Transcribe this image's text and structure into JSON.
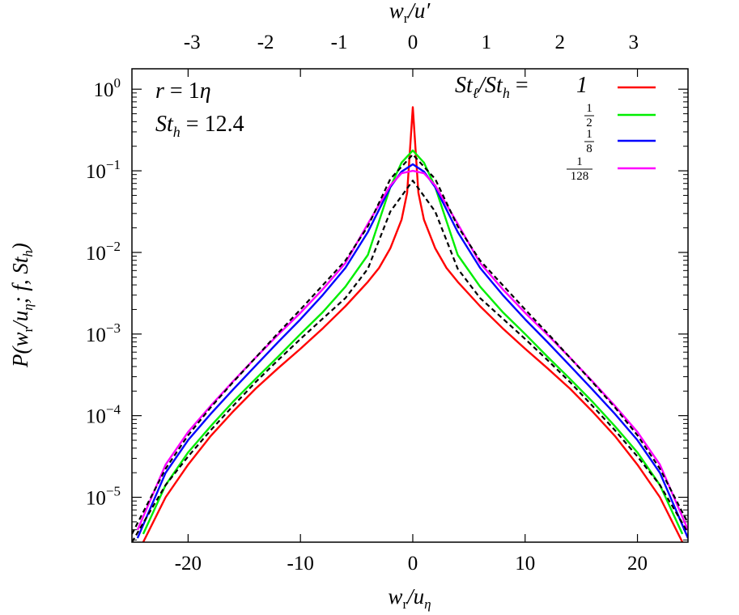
{
  "chart_data": {
    "type": "line",
    "xlabel_bottom": "wr/uη",
    "xlabel_top": "wr/u′",
    "ylabel": "P(wr/uη; f, Sth)",
    "x_ticks": [
      "-20",
      "-10",
      "0",
      "10",
      "20"
    ],
    "x_top_ticks": [
      "-3",
      "-2",
      "-1",
      "0",
      "1",
      "2",
      "3"
    ],
    "y_ticks": [
      "10^0",
      "10^-1",
      "10^-2",
      "10^-3",
      "10^-4",
      "10^-5"
    ],
    "xlim": [
      -25,
      24.5
    ],
    "ylim_log10": [
      -5.55,
      0.25
    ],
    "y_scale": "log",
    "annotations": [
      "r = 1η",
      "Sth = 12.4"
    ],
    "legend_title": "Stℓ/Sth",
    "legend_position": "top-right",
    "series": [
      {
        "name": "1",
        "color": "#ff0000",
        "dash": "solid",
        "x": [
          -24.0,
          -22.0,
          -20.0,
          -18.0,
          -16.0,
          -14.0,
          -12.0,
          -10.0,
          -8.0,
          -6.0,
          -4.0,
          -3.0,
          -2.0,
          -1.0,
          -0.5,
          0.0,
          0.5,
          1.0,
          2.0,
          3.0,
          4.0,
          6.0,
          8.0,
          10.0,
          12.0,
          14.0,
          16.0,
          18.0,
          20.0,
          22.0,
          24.0
        ],
        "log10_y": [
          -5.55,
          -5.0,
          -4.6,
          -4.25,
          -3.95,
          -3.67,
          -3.42,
          -3.18,
          -2.93,
          -2.66,
          -2.36,
          -2.19,
          -1.95,
          -1.6,
          -1.27,
          -0.22,
          -1.27,
          -1.6,
          -1.95,
          -2.19,
          -2.36,
          -2.66,
          -2.93,
          -3.18,
          -3.42,
          -3.67,
          -3.95,
          -4.25,
          -4.6,
          -5.0,
          -5.55
        ]
      },
      {
        "name": "1/2",
        "color": "#00ee00",
        "dash": "solid",
        "x": [
          -24.0,
          -22.0,
          -20.0,
          -18.0,
          -16.0,
          -14.0,
          -12.0,
          -10.0,
          -8.0,
          -6.0,
          -4.0,
          -2.0,
          -1.0,
          0.0,
          1.0,
          2.0,
          4.0,
          6.0,
          8.0,
          10.0,
          12.0,
          14.0,
          16.0,
          18.0,
          20.0,
          22.0,
          24.0
        ],
        "log10_y": [
          -5.45,
          -4.85,
          -4.45,
          -4.13,
          -3.83,
          -3.55,
          -3.28,
          -3.0,
          -2.73,
          -2.42,
          -2.03,
          -1.2,
          -0.9,
          -0.75,
          -0.9,
          -1.2,
          -2.03,
          -2.42,
          -2.73,
          -3.0,
          -3.28,
          -3.55,
          -3.83,
          -4.13,
          -4.45,
          -4.85,
          -5.45
        ]
      },
      {
        "name": "1/8",
        "color": "#0000ff",
        "dash": "solid",
        "x": [
          -24.5,
          -22.0,
          -20.0,
          -18.0,
          -16.0,
          -14.0,
          -12.0,
          -10.0,
          -8.0,
          -6.0,
          -4.0,
          -2.0,
          -1.0,
          0.0,
          1.0,
          2.0,
          4.0,
          6.0,
          8.0,
          10.0,
          12.0,
          14.0,
          16.0,
          18.0,
          20.0,
          22.0,
          24.5
        ],
        "log10_y": [
          -5.5,
          -4.7,
          -4.3,
          -3.98,
          -3.68,
          -3.39,
          -3.1,
          -2.82,
          -2.52,
          -2.19,
          -1.75,
          -1.2,
          -1.01,
          -0.92,
          -1.01,
          -1.2,
          -1.75,
          -2.19,
          -2.52,
          -2.82,
          -3.1,
          -3.39,
          -3.68,
          -3.98,
          -4.3,
          -4.7,
          -5.5
        ]
      },
      {
        "name": "1/128",
        "color": "#ff00ff",
        "dash": "solid",
        "x": [
          -24.5,
          -22.0,
          -20.0,
          -18.0,
          -16.0,
          -14.0,
          -12.0,
          -10.0,
          -8.0,
          -6.0,
          -4.0,
          -2.0,
          -1.0,
          0.0,
          1.0,
          2.0,
          4.0,
          6.0,
          8.0,
          10.0,
          12.0,
          14.0,
          16.0,
          18.0,
          20.0,
          22.0,
          24.5
        ],
        "log10_y": [
          -5.4,
          -4.6,
          -4.2,
          -3.88,
          -3.58,
          -3.29,
          -3.01,
          -2.74,
          -2.45,
          -2.13,
          -1.65,
          -1.18,
          -1.03,
          -1.0,
          -1.03,
          -1.18,
          -1.65,
          -2.13,
          -2.45,
          -2.74,
          -3.01,
          -3.29,
          -3.58,
          -3.88,
          -4.2,
          -4.6,
          -5.4
        ]
      },
      {
        "name": "",
        "color": "#000000",
        "dash": "dashed",
        "x": [
          -25.0,
          -22.0,
          -20.0,
          -18.0,
          -16.0,
          -14.0,
          -12.0,
          -10.0,
          -8.0,
          -6.0,
          -4.0,
          -2.0,
          0.0,
          2.0,
          4.0,
          6.0,
          8.0,
          10.0,
          12.0,
          14.0,
          16.0,
          18.0,
          20.0,
          22.0,
          25.0
        ],
        "log10_y": [
          -5.45,
          -4.65,
          -4.24,
          -3.9,
          -3.59,
          -3.29,
          -2.99,
          -2.7,
          -2.4,
          -2.1,
          -1.68,
          -1.1,
          -0.8,
          -1.1,
          -1.68,
          -2.1,
          -2.4,
          -2.7,
          -2.99,
          -3.29,
          -3.59,
          -3.9,
          -4.24,
          -4.65,
          -5.45
        ]
      },
      {
        "name": "",
        "color": "#000000",
        "dash": "dashed",
        "x": [
          -25.0,
          -22.0,
          -20.0,
          -18.0,
          -16.0,
          -14.0,
          -12.0,
          -10.0,
          -8.0,
          -6.0,
          -4.0,
          -2.0,
          0.0,
          2.0,
          4.0,
          6.0,
          8.0,
          10.0,
          12.0,
          14.0,
          16.0,
          18.0,
          20.0,
          22.0,
          25.0
        ],
        "log10_y": [
          -5.55,
          -4.85,
          -4.5,
          -4.18,
          -3.88,
          -3.59,
          -3.32,
          -3.06,
          -2.81,
          -2.56,
          -2.2,
          -1.5,
          -1.12,
          -1.5,
          -2.2,
          -2.56,
          -2.81,
          -3.06,
          -3.32,
          -3.59,
          -3.88,
          -4.18,
          -4.5,
          -4.85,
          -5.55
        ]
      }
    ]
  }
}
